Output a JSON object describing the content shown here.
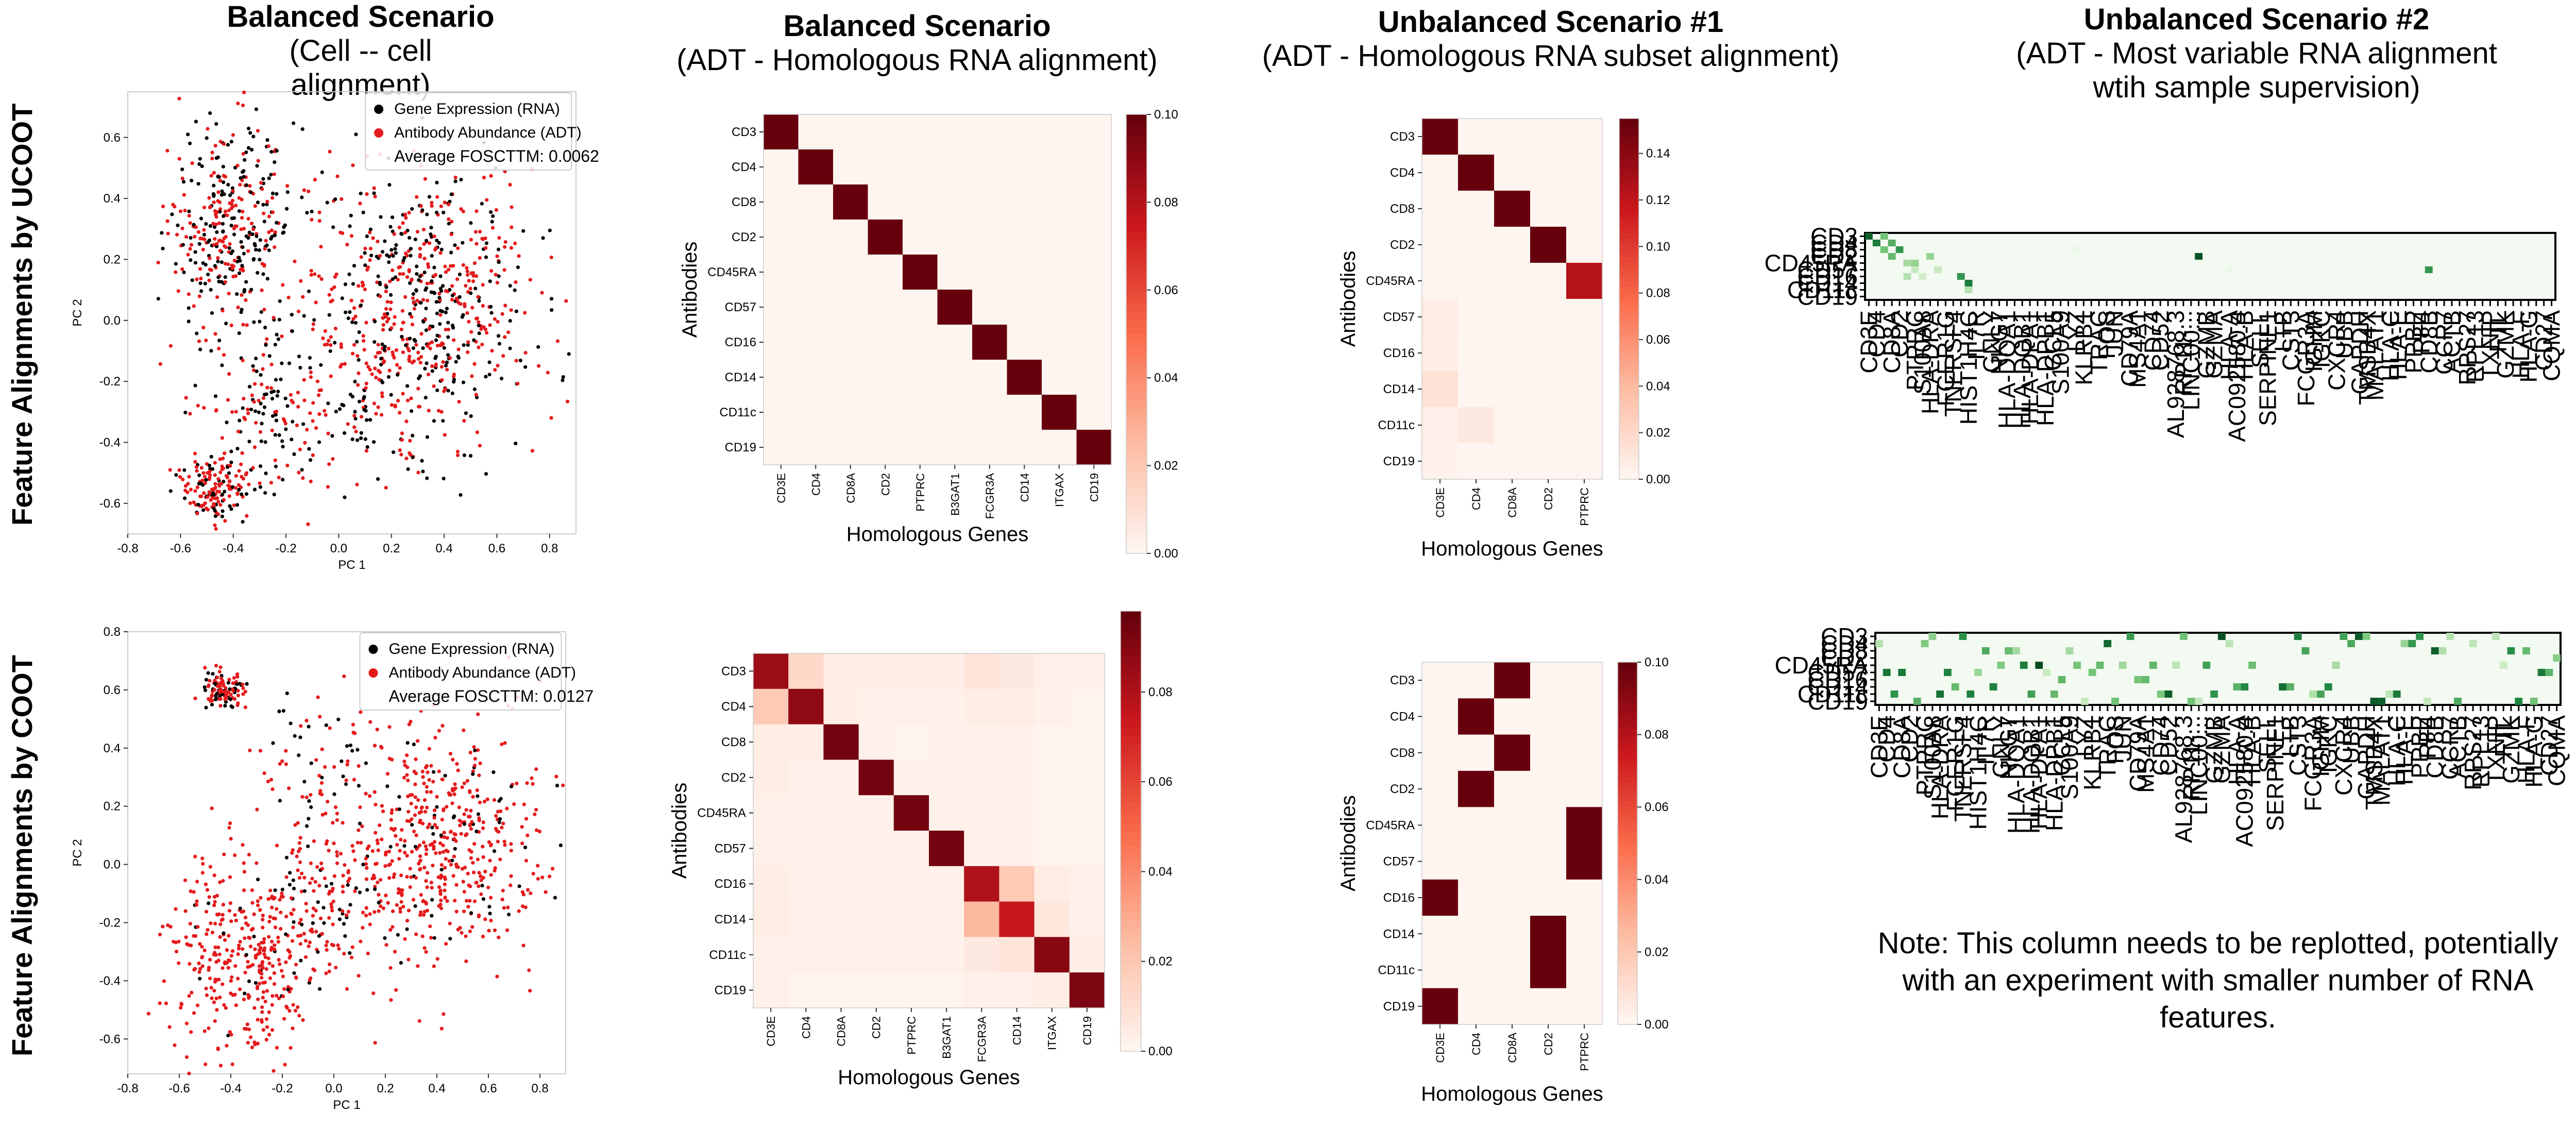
{
  "columns": [
    {
      "title": "Balanced Scenario",
      "subtitle": "(Cell -- cell alignment)"
    },
    {
      "title": "Balanced Scenario",
      "subtitle": "(ADT - Homologous RNA alignment)"
    },
    {
      "title": "Unbalanced Scenario #1",
      "subtitle": "(ADT - Homologous RNA subset alignment)"
    },
    {
      "title": "Unbalanced Scenario #2",
      "subtitle": "(ADT - Most variable RNA alignment",
      "subtitle2": "wtih sample supervision)"
    }
  ],
  "rows": [
    {
      "label": "Feature Alignments by UCOOT"
    },
    {
      "label": "Feature Alignments by COOT"
    }
  ],
  "note": "Note: This column needs to be replotted, potentially with an experiment with smaller number of RNA features.",
  "colors": {
    "rna": "#000000",
    "adt": "#e41a1c",
    "heat_low": "#fff5f0",
    "heat_high": "#67000d",
    "green_low": "#f7fcf5",
    "green_high": "#00441b"
  },
  "chart_data": [
    {
      "id": "scatter_ucoot",
      "type": "scatter",
      "xlabel": "PC 1",
      "ylabel": "PC 2",
      "xlim": [
        -0.8,
        0.9
      ],
      "ylim": [
        -0.7,
        0.75
      ],
      "xticks": [
        -0.8,
        -0.6,
        -0.4,
        -0.2,
        0.0,
        0.2,
        0.4,
        0.6,
        0.8
      ],
      "yticks": [
        -0.6,
        -0.4,
        -0.2,
        0.0,
        0.2,
        0.4,
        0.6
      ],
      "legend": {
        "placement": "top-right",
        "entries": [
          "Gene Expression (RNA)",
          "Antibody Abundance (ADT)"
        ],
        "annotation": "Average FOSCTTM: 0.0062"
      },
      "clusters": [
        {
          "cx": -0.42,
          "cy": 0.32,
          "sx": 0.12,
          "sy": 0.16,
          "n": 380,
          "black_frac": 0.45
        },
        {
          "cx": 0.33,
          "cy": 0.05,
          "sx": 0.2,
          "sy": 0.22,
          "n": 620,
          "black_frac": 0.42
        },
        {
          "cx": -0.48,
          "cy": -0.55,
          "sx": 0.07,
          "sy": 0.05,
          "n": 160,
          "black_frac": 0.3
        },
        {
          "cx": -0.3,
          "cy": -0.3,
          "sx": 0.12,
          "sy": 0.12,
          "n": 120,
          "black_frac": 0.5
        },
        {
          "cx": 0.05,
          "cy": -0.2,
          "sx": 0.22,
          "sy": 0.2,
          "n": 160,
          "black_frac": 0.4
        }
      ]
    },
    {
      "id": "scatter_coot",
      "type": "scatter",
      "xlabel": "PC 1",
      "ylabel": "PC 2",
      "xlim": [
        -0.8,
        0.9
      ],
      "ylim": [
        -0.72,
        0.8
      ],
      "xticks": [
        -0.8,
        -0.6,
        -0.4,
        -0.2,
        0.0,
        0.2,
        0.4,
        0.6,
        0.8
      ],
      "yticks": [
        -0.6,
        -0.4,
        -0.2,
        0.0,
        0.2,
        0.4,
        0.6,
        0.8
      ],
      "legend": {
        "placement": "top-right",
        "entries": [
          "Gene Expression (RNA)",
          "Antibody Abundance (ADT)"
        ],
        "annotation": "Average FOSCTTM: 0.0127"
      },
      "clusters": [
        {
          "cx": -0.43,
          "cy": 0.6,
          "sx": 0.05,
          "sy": 0.035,
          "n": 110,
          "black_frac": 0.35
        },
        {
          "cx": 0.4,
          "cy": 0.05,
          "sx": 0.2,
          "sy": 0.2,
          "n": 560,
          "black_frac": 0.12
        },
        {
          "cx": -0.35,
          "cy": -0.32,
          "sx": 0.16,
          "sy": 0.17,
          "n": 380,
          "black_frac": 0.05
        },
        {
          "cx": -0.05,
          "cy": -0.15,
          "sx": 0.12,
          "sy": 0.12,
          "n": 120,
          "black_frac": 0.4
        },
        {
          "cx": -0.1,
          "cy": 0.35,
          "sx": 0.12,
          "sy": 0.12,
          "n": 60,
          "black_frac": 0.4
        }
      ]
    },
    {
      "id": "heat_ucoot_balanced",
      "type": "heatmap",
      "xlabel": "Homologous Genes",
      "ylabel": "Antibodies",
      "x_categories": [
        "CD3E",
        "CD4",
        "CD8A",
        "CD2",
        "PTPRC",
        "B3GAT1",
        "FCGR3A",
        "CD14",
        "ITGAX",
        "CD19"
      ],
      "y_categories": [
        "CD3",
        "CD4",
        "CD8",
        "CD2",
        "CD45RA",
        "CD57",
        "CD16",
        "CD14",
        "CD11c",
        "CD19"
      ],
      "colorbar": {
        "min": 0.0,
        "max": 0.1,
        "ticks": [
          "0.00",
          "0.02",
          "0.04",
          "0.06",
          "0.08",
          "0.10"
        ]
      },
      "values": [
        [
          0.1,
          0,
          0,
          0,
          0,
          0,
          0,
          0,
          0,
          0
        ],
        [
          0,
          0.1,
          0,
          0,
          0,
          0,
          0,
          0,
          0,
          0
        ],
        [
          0,
          0,
          0.1,
          0,
          0,
          0,
          0,
          0,
          0,
          0
        ],
        [
          0,
          0,
          0,
          0.1,
          0,
          0,
          0,
          0,
          0,
          0
        ],
        [
          0,
          0,
          0,
          0,
          0.1,
          0,
          0,
          0,
          0,
          0
        ],
        [
          0,
          0,
          0,
          0,
          0,
          0.1,
          0,
          0,
          0,
          0
        ],
        [
          0,
          0,
          0,
          0,
          0,
          0,
          0.1,
          0,
          0,
          0
        ],
        [
          0,
          0,
          0,
          0,
          0,
          0,
          0,
          0.1,
          0,
          0
        ],
        [
          0,
          0,
          0,
          0,
          0,
          0,
          0,
          0,
          0.1,
          0
        ],
        [
          0,
          0,
          0,
          0,
          0,
          0,
          0,
          0,
          0,
          0.1
        ]
      ]
    },
    {
      "id": "heat_coot_balanced",
      "type": "heatmap",
      "xlabel": "Homologous Genes",
      "ylabel": "Antibodies",
      "x_categories": [
        "CD3E",
        "CD4",
        "CD8A",
        "CD2",
        "PTPRC",
        "B3GAT1",
        "FCGR3A",
        "CD14",
        "ITGAX",
        "CD19"
      ],
      "y_categories": [
        "CD3",
        "CD4",
        "CD8",
        "CD2",
        "CD45RA",
        "CD57",
        "CD16",
        "CD14",
        "CD11c",
        "CD19"
      ],
      "colorbar": {
        "min": 0.0,
        "max": 0.098,
        "ticks": [
          "0.00",
          "0.02",
          "0.04",
          "0.06",
          "0.08"
        ]
      },
      "values": [
        [
          0.085,
          0.012,
          0.004,
          0.003,
          0.003,
          0.003,
          0.007,
          0.005,
          0.002,
          0.002
        ],
        [
          0.018,
          0.088,
          0.003,
          0.002,
          0.002,
          0.002,
          0.003,
          0.004,
          0.002,
          0.001
        ],
        [
          0.004,
          0.003,
          0.095,
          0.002,
          0.001,
          0.002,
          0.002,
          0.002,
          0.001,
          0.001
        ],
        [
          0.003,
          0.002,
          0.002,
          0.095,
          0.002,
          0.002,
          0.002,
          0.002,
          0.001,
          0.001
        ],
        [
          0.002,
          0.002,
          0.002,
          0.002,
          0.095,
          0.002,
          0.002,
          0.002,
          0.001,
          0.001
        ],
        [
          0.002,
          0.002,
          0.002,
          0.002,
          0.002,
          0.095,
          0.002,
          0.002,
          0.001,
          0.001
        ],
        [
          0.003,
          0.002,
          0.002,
          0.002,
          0.002,
          0.002,
          0.08,
          0.018,
          0.004,
          0.002
        ],
        [
          0.004,
          0.002,
          0.002,
          0.002,
          0.002,
          0.002,
          0.025,
          0.075,
          0.006,
          0.002
        ],
        [
          0.002,
          0.002,
          0.002,
          0.002,
          0.002,
          0.002,
          0.005,
          0.007,
          0.09,
          0.003
        ],
        [
          0.002,
          0.001,
          0.001,
          0.001,
          0.001,
          0.001,
          0.002,
          0.002,
          0.003,
          0.093
        ]
      ]
    },
    {
      "id": "heat_ucoot_unbalanced1",
      "type": "heatmap",
      "xlabel": "Homologous Genes",
      "ylabel": "Antibodies",
      "x_categories": [
        "CD3E",
        "CD4",
        "CD8A",
        "CD2",
        "PTPRC"
      ],
      "y_categories": [
        "CD3",
        "CD4",
        "CD8",
        "CD2",
        "CD45RA",
        "CD57",
        "CD16",
        "CD14",
        "CD11c",
        "CD19"
      ],
      "colorbar": {
        "min": 0.0,
        "max": 0.155,
        "ticks": [
          "0.00",
          "0.02",
          "0.04",
          "0.06",
          "0.08",
          "0.10",
          "0.12",
          "0.14"
        ]
      },
      "values": [
        [
          0.155,
          0,
          0,
          0,
          0
        ],
        [
          0,
          0.155,
          0,
          0,
          0
        ],
        [
          0,
          0,
          0.155,
          0,
          0
        ],
        [
          0,
          0,
          0,
          0.155,
          0
        ],
        [
          0,
          0,
          0,
          0,
          0.125
        ],
        [
          0.006,
          0,
          0,
          0,
          0
        ],
        [
          0.005,
          0,
          0,
          0,
          0
        ],
        [
          0.013,
          0,
          0,
          0,
          0
        ],
        [
          0.004,
          0.008,
          0,
          0,
          0
        ],
        [
          0.002,
          0,
          0,
          0,
          0
        ]
      ]
    },
    {
      "id": "heat_coot_unbalanced1",
      "type": "heatmap",
      "xlabel": "Homologous Genes",
      "ylabel": "Antibodies",
      "x_categories": [
        "CD3E",
        "CD4",
        "CD8A",
        "CD2",
        "PTPRC"
      ],
      "y_categories": [
        "CD3",
        "CD4",
        "CD8",
        "CD2",
        "CD45RA",
        "CD57",
        "CD16",
        "CD14",
        "CD11c",
        "CD19"
      ],
      "colorbar": {
        "min": 0.0,
        "max": 0.1,
        "ticks": [
          "0.00",
          "0.02",
          "0.04",
          "0.06",
          "0.08",
          "0.10"
        ]
      },
      "values": [
        [
          0,
          0,
          0.1,
          0,
          0
        ],
        [
          0,
          0.1,
          0,
          0,
          0
        ],
        [
          0,
          0,
          0.1,
          0,
          0
        ],
        [
          0,
          0.1,
          0,
          0,
          0
        ],
        [
          0,
          0,
          0,
          0,
          0.1
        ],
        [
          0,
          0,
          0,
          0,
          0.1
        ],
        [
          0.1,
          0,
          0,
          0,
          0
        ],
        [
          0,
          0,
          0,
          0.1,
          0
        ],
        [
          0,
          0,
          0,
          0.1,
          0
        ],
        [
          0.1,
          0,
          0,
          0,
          0
        ]
      ]
    },
    {
      "id": "heat_ucoot_unbalanced2",
      "type": "heatmap",
      "y_categories": [
        "CD3",
        "CD4",
        "CD8",
        "CD2",
        "CD45RA",
        "CD57",
        "CD16",
        "CD14",
        "CD11c",
        "CD19"
      ],
      "x_categories": [
        "CD3E",
        "CD4",
        "CD8A",
        "CD2",
        "PTPRC",
        "S100A8",
        "HLA-DRA",
        "FCER1G",
        "TNFRSF4",
        "HIST1H4C",
        "IL7R",
        "GNLY",
        "NKG7",
        "HLA-DQA1",
        "HLA-DQB1",
        "HLA-DPA1",
        "HLA-DPB1",
        "CCL5",
        "S100A9",
        "LYZ",
        "KLRB1",
        "TRAC",
        "FOS",
        "JUN",
        "CD79A",
        "MS4A1",
        "CD74",
        "CD52",
        "AL928768.3",
        "RP11-...",
        "LINC00...",
        "GZMB",
        "GZMA",
        "HLA-A",
        "AC092580.4",
        "HLA-B",
        "SELL",
        "SERPINF1",
        "LTB",
        "CST3",
        "FCGR3A",
        "IGHM",
        "IGKC",
        "CXCR4",
        "UBB",
        "GAPDH",
        "TMSB4X",
        "MALAT1",
        "HLA-C",
        "HLA-E",
        "PPBP",
        "PF4",
        "CD8B",
        "CCR7",
        "ACTB",
        "RPS27",
        "RPL13",
        "TXNIP",
        "FTL",
        "GZMK",
        "HLA-F",
        "HLA-G",
        "CD27",
        "CQMA"
      ],
      "colormap": "greens",
      "sparse_cells": [
        [
          0,
          0,
          0.9
        ],
        [
          0,
          2,
          0.5
        ],
        [
          1,
          1,
          0.8
        ],
        [
          1,
          3,
          0.6
        ],
        [
          2,
          2,
          0.5
        ],
        [
          2,
          4,
          0.7
        ],
        [
          3,
          3,
          0.55
        ],
        [
          4,
          5,
          0.35
        ],
        [
          4,
          6,
          0.4
        ],
        [
          5,
          6,
          0.25
        ],
        [
          6,
          5,
          0.3
        ],
        [
          6,
          7,
          0.2
        ],
        [
          3,
          8,
          0.4
        ],
        [
          5,
          9,
          0.25
        ],
        [
          6,
          12,
          0.7
        ],
        [
          7,
          13,
          0.8
        ],
        [
          8,
          13,
          0.3
        ],
        [
          3,
          43,
          0.95
        ],
        [
          5,
          73,
          0.7
        ],
        [
          2,
          27,
          0.06
        ],
        [
          5,
          47,
          0.06
        ]
      ]
    },
    {
      "id": "heat_coot_unbalanced2",
      "type": "heatmap",
      "y_categories": [
        "CD3",
        "CD4",
        "CD8",
        "CD2",
        "CD45RA",
        "CD57",
        "CD16",
        "CD14",
        "CD11c",
        "CD19"
      ],
      "x_categories": [
        "CD3E",
        "CD4",
        "CD8A",
        "CD2",
        "PTPRC",
        "S100A8",
        "HLA-DRA",
        "FCER1G",
        "TNFRSF4",
        "HIST1H4C",
        "IL7R",
        "GNLY",
        "NKG7",
        "HLA-DQA1",
        "HLA-DQB1",
        "HLA-DPA1",
        "HLA-DPB1",
        "CCL5",
        "S100A9",
        "LYZ",
        "KLRB1",
        "TRAC",
        "FOS",
        "JUN",
        "CD79A",
        "MS4A1",
        "CD74",
        "CD52",
        "AL928768.3",
        "RP11-...",
        "LINC00...",
        "GZMB",
        "GZMA",
        "HLA-A",
        "AC092580.4",
        "HLA-B",
        "SELL",
        "SERPINF1",
        "LTB",
        "CST3",
        "FCGR3A",
        "IGHM",
        "IGKC",
        "CXCR4",
        "UBB",
        "GAPDH",
        "TMSB4X",
        "MALAT1",
        "HLA-C",
        "HLA-E",
        "PPBP",
        "PF4",
        "CD8B",
        "CCR7",
        "ACTB",
        "RPS27",
        "RPL13",
        "TXNIP",
        "FTL",
        "GZMK",
        "HLA-F",
        "HLA-G",
        "CD27",
        "CQMA"
      ],
      "colormap": "greens",
      "sparse_cells": []
    }
  ]
}
